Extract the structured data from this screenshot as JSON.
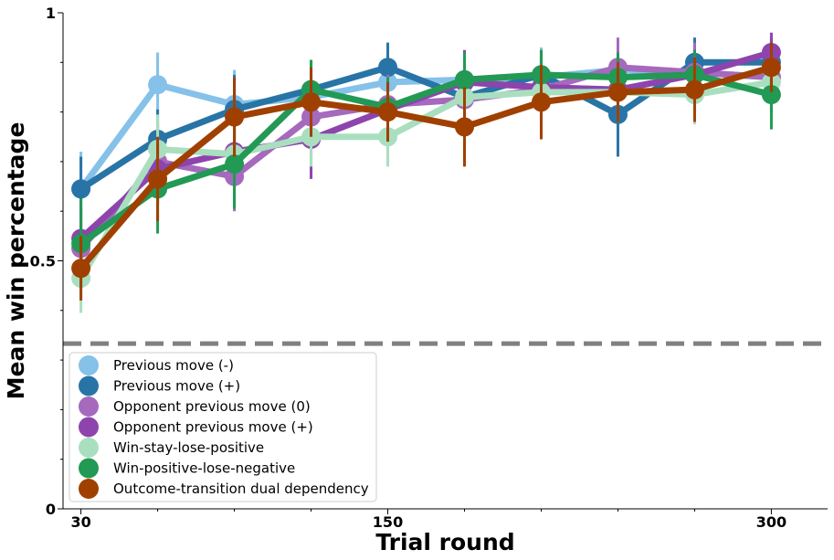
{
  "chart_data": {
    "type": "line",
    "xlabel": "Trial round",
    "ylabel": "Mean win percentage",
    "xlim": [
      23,
      322
    ],
    "ylim": [
      0,
      1
    ],
    "x": [
      30,
      60,
      90,
      120,
      150,
      180,
      210,
      240,
      270,
      300
    ],
    "x_tick_labels": [
      "30",
      "150",
      "300"
    ],
    "x_tick_values": [
      30,
      150,
      300
    ],
    "x_minor_ticks": [
      60,
      90,
      120,
      180,
      210,
      240,
      270
    ],
    "y_tick_labels": [
      "0",
      "0.5",
      "1"
    ],
    "y_tick_values": [
      0,
      0.5,
      1
    ],
    "y_minor_ticks": [
      0.1,
      0.2,
      0.3,
      0.4,
      0.6,
      0.7,
      0.8,
      0.9
    ],
    "reference_line": {
      "y": 0.333,
      "style": "dashed",
      "color": "#808080"
    },
    "legend_position": "lower-left",
    "series": [
      {
        "name": "Previous move (-)",
        "color": "#85C1E9",
        "values": [
          0.645,
          0.855,
          0.815,
          0.83,
          0.86,
          0.865,
          0.87,
          0.885,
          0.88,
          0.87
        ],
        "err": [
          0.075,
          0.065,
          0.07,
          0.06,
          0.05,
          0.05,
          0.06,
          0.05,
          0.05,
          0.05
        ]
      },
      {
        "name": "Previous move (+)",
        "color": "#2874A6",
        "values": [
          0.645,
          0.745,
          0.805,
          0.845,
          0.89,
          0.83,
          0.875,
          0.795,
          0.9,
          0.9
        ],
        "err": [
          0.065,
          0.06,
          0.07,
          0.06,
          0.05,
          0.05,
          0.05,
          0.085,
          0.05,
          0.05
        ]
      },
      {
        "name": "Opponent previous move (0)",
        "color": "#A569BD",
        "values": [
          0.525,
          0.7,
          0.67,
          0.79,
          0.815,
          0.825,
          0.845,
          0.89,
          0.88,
          0.87
        ],
        "err": [
          0.05,
          0.08,
          0.07,
          0.08,
          0.06,
          0.07,
          0.06,
          0.06,
          0.06,
          0.07
        ]
      },
      {
        "name": "Opponent previous move (+)",
        "color": "#8E44AD",
        "values": [
          0.545,
          0.685,
          0.72,
          0.745,
          0.805,
          0.86,
          0.85,
          0.845,
          0.875,
          0.92
        ],
        "err": [
          0.06,
          0.07,
          0.06,
          0.08,
          0.06,
          0.065,
          0.06,
          0.06,
          0.05,
          0.04
        ]
      },
      {
        "name": "Win-stay-lose-positive",
        "color": "#A9DFBF",
        "values": [
          0.465,
          0.725,
          0.715,
          0.75,
          0.75,
          0.83,
          0.84,
          0.84,
          0.835,
          0.86
        ],
        "err": [
          0.07,
          0.07,
          0.06,
          0.06,
          0.06,
          0.07,
          0.06,
          0.06,
          0.06,
          0.05
        ]
      },
      {
        "name": "Win-positive-lose-negative",
        "color": "#229954",
        "values": [
          0.535,
          0.645,
          0.695,
          0.845,
          0.81,
          0.865,
          0.875,
          0.87,
          0.875,
          0.835
        ],
        "err": [
          0.09,
          0.09,
          0.09,
          0.06,
          0.06,
          0.055,
          0.05,
          0.05,
          0.05,
          0.07
        ]
      },
      {
        "name": "Outcome-transition dual dependency",
        "color": "#A04000",
        "values": [
          0.485,
          0.665,
          0.79,
          0.82,
          0.8,
          0.77,
          0.82,
          0.84,
          0.845,
          0.89
        ],
        "err": [
          0.065,
          0.085,
          0.08,
          0.07,
          0.06,
          0.08,
          0.075,
          0.06,
          0.065,
          0.05
        ]
      }
    ]
  }
}
